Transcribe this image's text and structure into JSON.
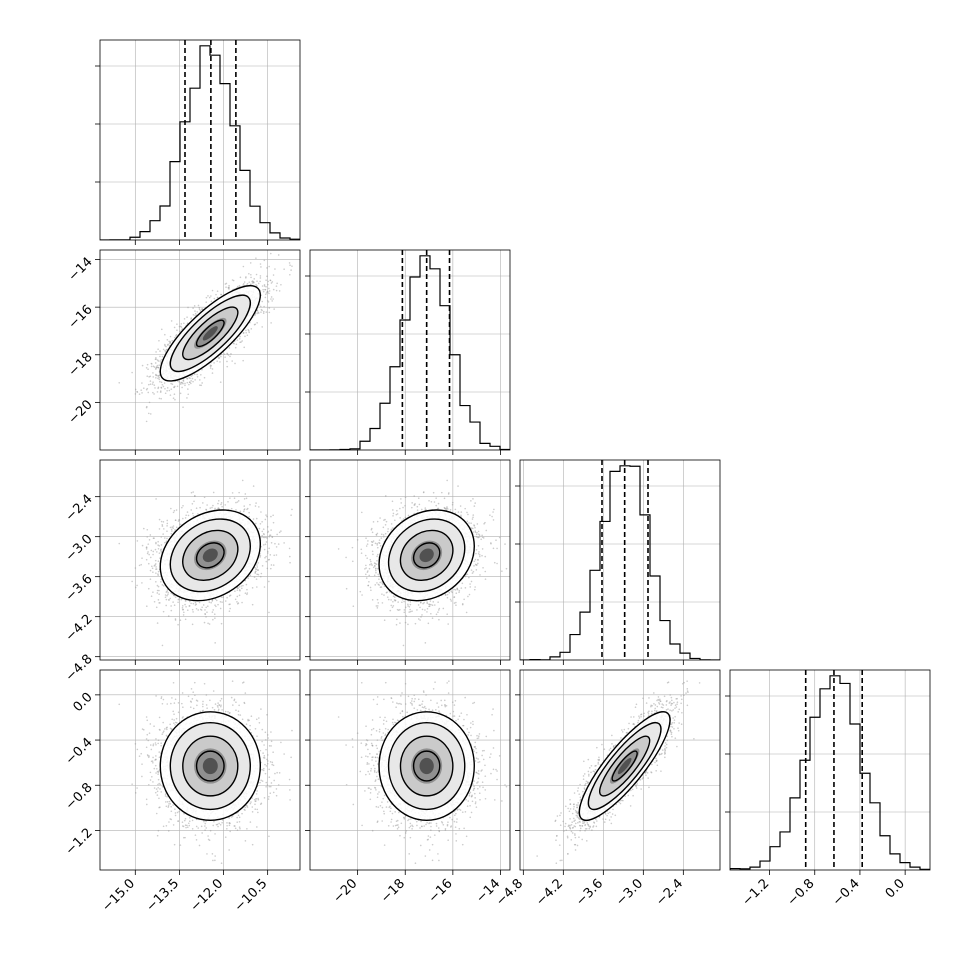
{
  "chart_data": {
    "type": "corner",
    "params": [
      {
        "range": [
          -16.2,
          -9.4
        ],
        "xticks": [
          -15.0,
          -13.5,
          -12.0,
          -10.5
        ],
        "xtick_labels": [
          "−15.0",
          "−13.5",
          "−12.0",
          "−10.5"
        ],
        "quantiles": [
          -13.31,
          -12.43,
          -11.58
        ],
        "mean": -12.45,
        "sd": 0.85
      },
      {
        "range": [
          -22.0,
          -13.6
        ],
        "xticks": [
          -20,
          -18,
          -16,
          -14
        ],
        "xtick_labels": [
          "−20",
          "−18",
          "−16",
          "−14"
        ],
        "yticks": [
          -14,
          -16,
          -18,
          -20
        ],
        "ytick_labels": [
          "−14",
          "−16",
          "−18",
          "−20"
        ],
        "quantiles": [
          -18.12,
          -17.1,
          -16.14
        ],
        "mean": -17.1,
        "sd": 1.0
      },
      {
        "range": [
          -4.85,
          -1.85
        ],
        "xticks": [
          -4.8,
          -4.2,
          -3.6,
          -3.0,
          -2.4
        ],
        "xtick_labels": [
          "−4.8",
          "−4.2",
          "−3.6",
          "−3.0",
          "−2.4"
        ],
        "yticks": [
          -2.4,
          -3.0,
          -3.6,
          -4.2,
          -4.8
        ],
        "ytick_labels": [
          "−2.4",
          "−3.0",
          "−3.6",
          "−4.2",
          "−4.8"
        ],
        "quantiles": [
          -3.62,
          -3.28,
          -2.93
        ],
        "mean": -3.28,
        "sd": 0.34
      },
      {
        "range": [
          -1.55,
          0.22
        ],
        "xticks": [
          -1.2,
          -0.8,
          -0.4,
          0.0
        ],
        "xtick_labels": [
          "−1.2",
          "−0.8",
          "−0.4",
          "0.0"
        ],
        "yticks": [
          0.0,
          -0.4,
          -0.8,
          -1.2
        ],
        "ytick_labels": [
          "0.0",
          "−0.4",
          "−0.8",
          "−1.2"
        ],
        "quantiles": [
          -0.88,
          -0.63,
          -0.38
        ],
        "mean": -0.63,
        "sd": 0.24
      }
    ],
    "correlations": [
      [
        1.0,
        0.8,
        0.25,
        0.0
      ],
      [
        0.8,
        1.0,
        0.2,
        0.0
      ],
      [
        0.25,
        0.2,
        1.0,
        0.85
      ],
      [
        0.0,
        0.0,
        0.85,
        1.0
      ]
    ],
    "grid": true,
    "quantile_line_style": "dashed"
  }
}
